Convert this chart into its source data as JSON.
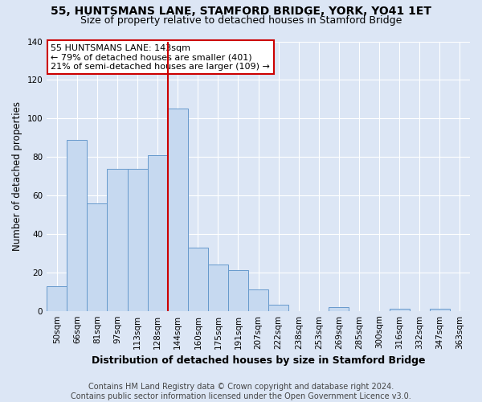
{
  "title": "55, HUNTSMANS LANE, STAMFORD BRIDGE, YORK, YO41 1ET",
  "subtitle": "Size of property relative to detached houses in Stamford Bridge",
  "xlabel": "Distribution of detached houses by size in Stamford Bridge",
  "ylabel": "Number of detached properties",
  "bar_labels": [
    "50sqm",
    "66sqm",
    "81sqm",
    "97sqm",
    "113sqm",
    "128sqm",
    "144sqm",
    "160sqm",
    "175sqm",
    "191sqm",
    "207sqm",
    "222sqm",
    "238sqm",
    "253sqm",
    "269sqm",
    "285sqm",
    "300sqm",
    "316sqm",
    "332sqm",
    "347sqm",
    "363sqm"
  ],
  "bar_values": [
    13,
    89,
    56,
    74,
    74,
    81,
    105,
    33,
    24,
    21,
    11,
    3,
    0,
    0,
    2,
    0,
    0,
    1,
    0,
    1,
    0
  ],
  "bar_color": "#c6d9f0",
  "bar_edge_color": "#6699cc",
  "vline_x": 5.5,
  "vline_color": "#cc0000",
  "annotation_text": "55 HUNTSMANS LANE: 143sqm\n← 79% of detached houses are smaller (401)\n21% of semi-detached houses are larger (109) →",
  "annotation_box_color": "#ffffff",
  "annotation_box_edge": "#cc0000",
  "ylim": [
    0,
    140
  ],
  "yticks": [
    0,
    20,
    40,
    60,
    80,
    100,
    120,
    140
  ],
  "background_color": "#dce6f5",
  "plot_bg_color": "#dce6f5",
  "footer": "Contains HM Land Registry data © Crown copyright and database right 2024.\nContains public sector information licensed under the Open Government Licence v3.0.",
  "title_fontsize": 10,
  "subtitle_fontsize": 9,
  "xlabel_fontsize": 9,
  "ylabel_fontsize": 8.5,
  "tick_fontsize": 7.5,
  "footer_fontsize": 7
}
